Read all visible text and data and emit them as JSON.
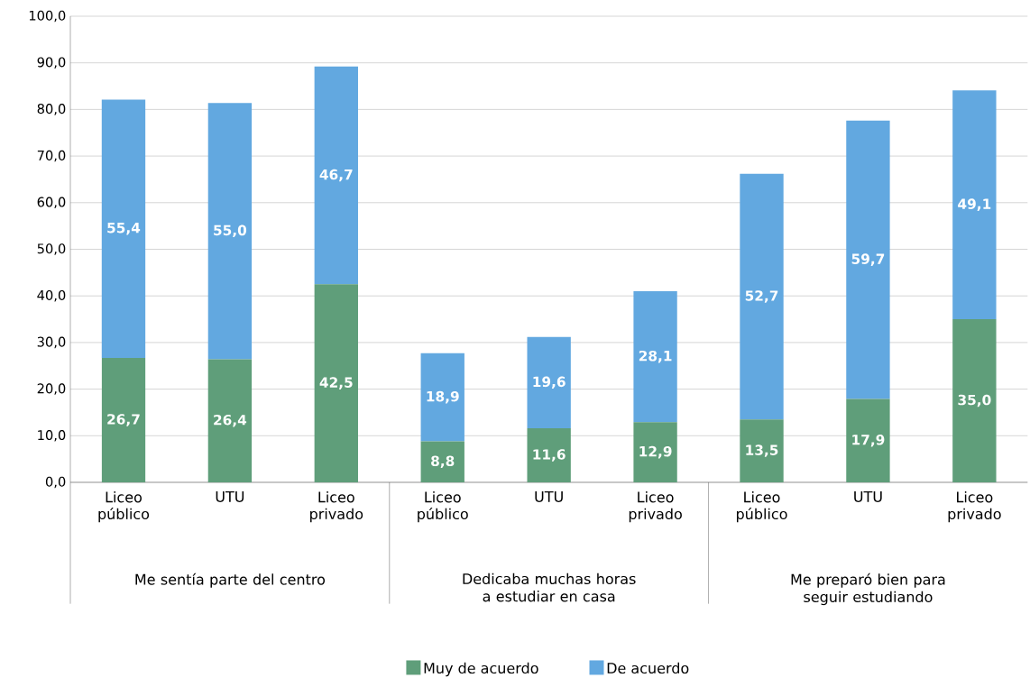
{
  "chart_data": {
    "type": "bar",
    "stacked": true,
    "categories": [
      "Liceo público",
      "UTU",
      "Liceo privado",
      "Liceo público",
      "UTU",
      "Liceo privado",
      "Liceo público",
      "UTU",
      "Liceo privado"
    ],
    "series": [
      {
        "name": "Muy de acuerdo",
        "color": "#5f9e7a",
        "values": [
          26.7,
          26.4,
          42.5,
          8.8,
          11.6,
          12.9,
          13.5,
          17.9,
          35.0
        ],
        "value_labels": [
          "26,7",
          "26,4",
          "42,5",
          "8,8",
          "11,6",
          "12,9",
          "13,5",
          "17,9",
          "35,0"
        ]
      },
      {
        "name": "De acuerdo",
        "color": "#62a8e0",
        "values": [
          55.4,
          55.0,
          46.7,
          18.9,
          19.6,
          28.1,
          52.7,
          59.7,
          49.1
        ],
        "value_labels": [
          "55,4",
          "55,0",
          "46,7",
          "18,9",
          "19,6",
          "28,1",
          "52,7",
          "59,7",
          "49,1"
        ]
      }
    ],
    "annotations": [
      "Me sentía parte del centro",
      "Dedicaba muchas horas a estudiar en casa",
      "Me preparó bien para seguir estudiando"
    ],
    "ylim": [
      0,
      100
    ],
    "yticks": [
      {
        "value": 0,
        "label": "0,0"
      },
      {
        "value": 10,
        "label": "10,0"
      },
      {
        "value": 20,
        "label": "20,0"
      },
      {
        "value": 30,
        "label": "30,0"
      },
      {
        "value": 40,
        "label": "40,0"
      },
      {
        "value": 50,
        "label": "50,0"
      },
      {
        "value": 60,
        "label": "60,0"
      },
      {
        "value": 70,
        "label": "70,0"
      },
      {
        "value": 80,
        "label": "80,0"
      },
      {
        "value": 90,
        "label": "90,0"
      },
      {
        "value": 100,
        "label": "100,0"
      }
    ],
    "grid": "y",
    "legend": "bottom"
  }
}
